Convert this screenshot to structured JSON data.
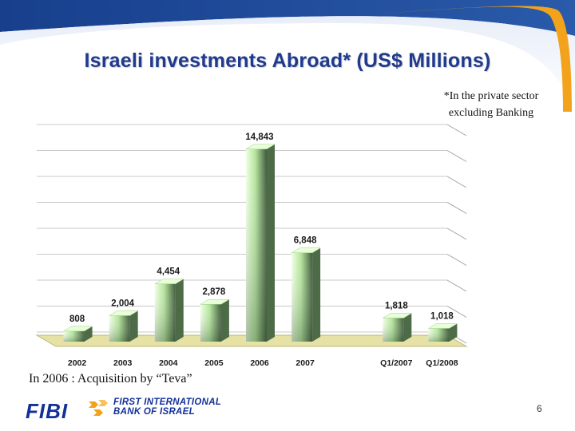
{
  "title": "Israeli investments Abroad* (US$ Millions)",
  "footnote": {
    "line1": "*In the private sector",
    "line2": "excluding Banking"
  },
  "caption": "In 2006 : Acquisition by “Teva”",
  "footer": {
    "logo_text": "FIBI",
    "bank_line1": "FIRST INTERNATIONAL",
    "bank_line2": "BANK OF ISRAEL",
    "page_number": "6"
  },
  "colors": {
    "title": "#1f3a8f",
    "band_dark": "#1f4a9a",
    "band_accent": "#f2a31b",
    "bar_light": "#f0ffe6",
    "bar_mid": "#b4e49c",
    "bar_dark": "#3f5a3b",
    "floor": "#e6e2a6"
  },
  "chart_data": {
    "type": "bar",
    "title": "",
    "xlabel": "",
    "ylabel": "",
    "categories": [
      "2002",
      "2003",
      "2004",
      "2005",
      "2006",
      "2007",
      "",
      "Q1/2007",
      "Q1/2008"
    ],
    "values": [
      808,
      2004,
      4454,
      2878,
      14843,
      6848,
      null,
      1818,
      1018
    ],
    "value_labels": [
      "808",
      "2,004",
      "4,454",
      "2,878",
      "14,843",
      "6,848",
      "",
      "1,818",
      "1,018"
    ],
    "ylim": [
      0,
      16000
    ],
    "grid": true,
    "legend": "none"
  }
}
